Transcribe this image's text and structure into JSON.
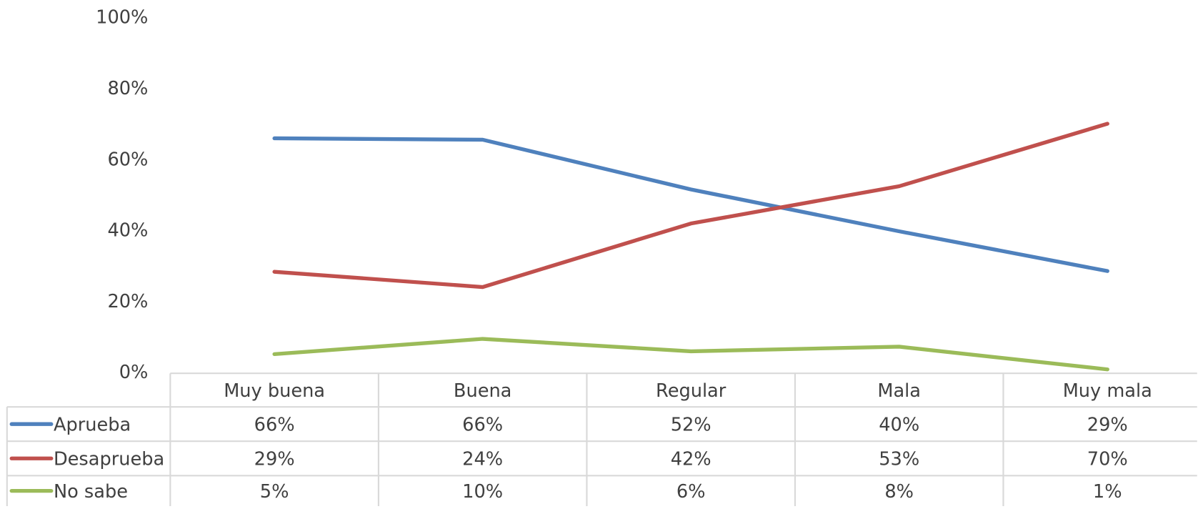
{
  "chart_data": {
    "type": "line",
    "categories": [
      "Muy buena",
      "Buena",
      "Regular",
      "Mala",
      "Muy mala"
    ],
    "series": [
      {
        "name": "Aprueba",
        "color": "#4f81bd",
        "values": [
          66.2,
          65.8,
          51.8,
          40,
          28.8
        ],
        "value_labels": [
          "66%",
          "66%",
          "52%",
          "40%",
          "29%"
        ]
      },
      {
        "name": "Desaprueba",
        "color": "#c0504d",
        "values": [
          28.6,
          24.3,
          42.2,
          52.7,
          70.3
        ],
        "value_labels": [
          "29%",
          "24%",
          "42%",
          "53%",
          "70%"
        ]
      },
      {
        "name": "No sabe",
        "color": "#9bbb59",
        "values": [
          5.4,
          9.7,
          6.2,
          7.5,
          1.1
        ],
        "value_labels": [
          "5%",
          "10%",
          "6%",
          "8%",
          "1%"
        ]
      }
    ],
    "ylim": [
      0,
      100
    ],
    "yticks": [
      {
        "value": 0,
        "label": "0%"
      },
      {
        "value": 20,
        "label": "20%"
      },
      {
        "value": 40,
        "label": "40%"
      },
      {
        "value": 60,
        "label": "60%"
      },
      {
        "value": 80,
        "label": "80%"
      },
      {
        "value": 100,
        "label": "100%"
      }
    ],
    "grid": false
  }
}
